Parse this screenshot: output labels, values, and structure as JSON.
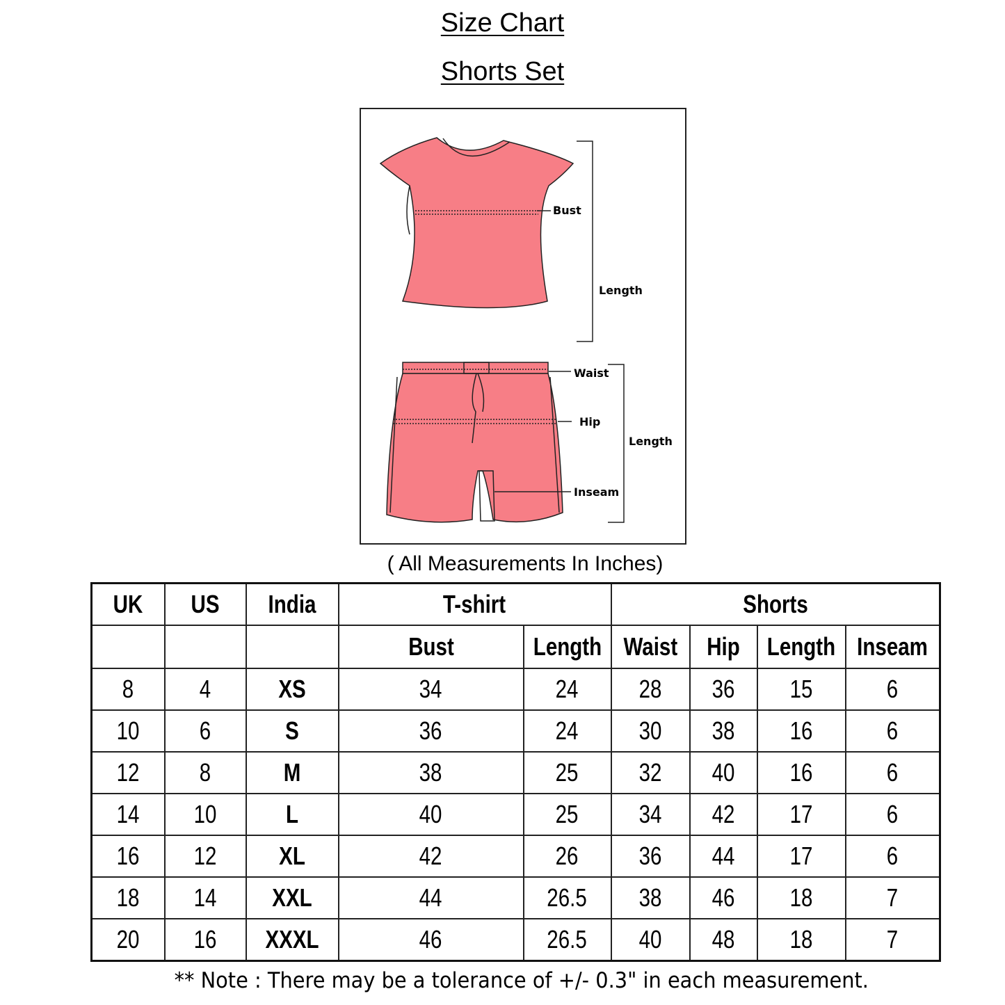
{
  "title": "Size Chart",
  "subtitle": "Shorts Set",
  "garment_color": "#f77e86",
  "diagram": {
    "top_labels": {
      "bust": "Bust",
      "length": "Length"
    },
    "shorts_labels": {
      "waist": "Waist",
      "hip": "Hip",
      "length": "Length",
      "inseam": "Inseam"
    }
  },
  "units_note": "( All Measurements In Inches)",
  "table": {
    "header_row1": {
      "uk": "UK",
      "us": "US",
      "india": "India",
      "tshirt": "T-shirt",
      "shorts": "Shorts"
    },
    "header_row2": {
      "bust": "Bust",
      "tshirt_length": "Length",
      "waist": "Waist",
      "hip": "Hip",
      "shorts_length": "Length",
      "inseam": "Inseam"
    },
    "rows": [
      [
        "8",
        "4",
        "XS",
        "34",
        "24",
        "28",
        "36",
        "15",
        "6"
      ],
      [
        "10",
        "6",
        "S",
        "36",
        "24",
        "30",
        "38",
        "16",
        "6"
      ],
      [
        "12",
        "8",
        "M",
        "38",
        "25",
        "32",
        "40",
        "16",
        "6"
      ],
      [
        "14",
        "10",
        "L",
        "40",
        "25",
        "34",
        "42",
        "17",
        "6"
      ],
      [
        "16",
        "12",
        "XL",
        "42",
        "26",
        "36",
        "44",
        "17",
        "6"
      ],
      [
        "18",
        "14",
        "XXL",
        "44",
        "26.5",
        "38",
        "46",
        "18",
        "7"
      ],
      [
        "20",
        "16",
        "XXXL",
        "46",
        "26.5",
        "40",
        "48",
        "18",
        "7"
      ]
    ]
  },
  "note": "** Note : There may be a tolerance of +/- 0.3\" in each measurement."
}
